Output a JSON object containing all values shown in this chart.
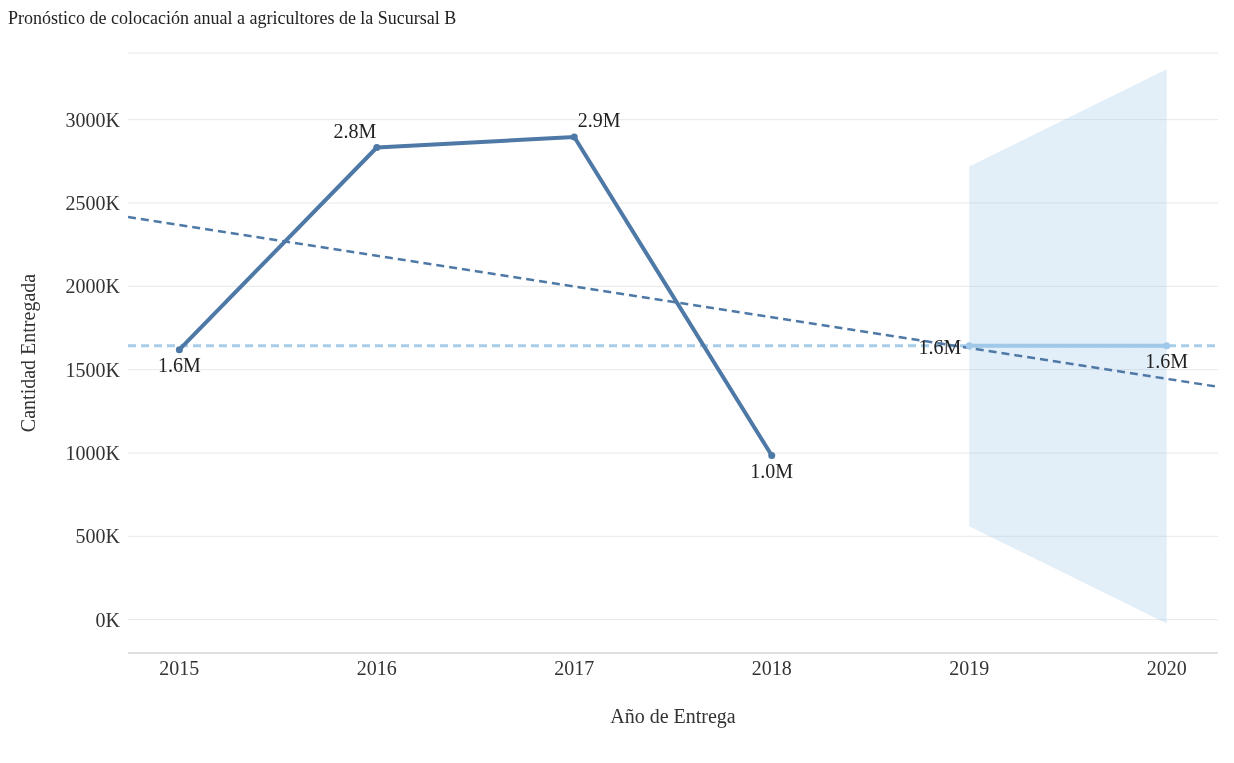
{
  "chart_data": {
    "type": "line",
    "title": "Pronóstico de colocación anual a agricultores de la Sucursal B",
    "xlabel": "Año de Entrega",
    "ylabel": "Cantidad Entregada",
    "xlim": [
      2014.74,
      2020.26
    ],
    "xticks": [
      2015,
      2016,
      2017,
      2018,
      2019,
      2020
    ],
    "ylim": [
      -200000,
      3400000
    ],
    "yticks": [
      {
        "value": 0,
        "label": "0K"
      },
      {
        "value": 500000,
        "label": "500K"
      },
      {
        "value": 1000000,
        "label": "1000K"
      },
      {
        "value": 1500000,
        "label": "1500K"
      },
      {
        "value": 2000000,
        "label": "2000K"
      },
      {
        "value": 2500000,
        "label": "2500K"
      },
      {
        "value": 3000000,
        "label": "3000K"
      }
    ],
    "grid": "y",
    "marker": "circle",
    "line_style": "solid",
    "ref_lines": [
      {
        "axis": "y",
        "value": 1643000,
        "color": "#a8cde9",
        "line_style": "dashed"
      }
    ],
    "series": [
      {
        "color": "#4e79a7",
        "x": [
          2015,
          2016,
          2017,
          2018
        ],
        "values": [
          1620000,
          2833000,
          2896000,
          985000
        ],
        "value_labels": [
          "1.6M",
          "2.8M",
          "2.9M",
          "1.0M"
        ]
      },
      {
        "color": "#a0c8e8",
        "x": [
          2019,
          2020
        ],
        "values": [
          1643000,
          1643000
        ],
        "lower": [
          561000,
          -23000
        ],
        "upper": [
          2719000,
          3303000
        ],
        "value_labels": [
          "1.6M",
          "1.6M"
        ]
      },
      {
        "color": "#4e79a7",
        "line_style": "dashed",
        "marker": "none",
        "x": [
          2014.74,
          2020.26
        ],
        "values": [
          2416000,
          1397000
        ]
      }
    ]
  }
}
